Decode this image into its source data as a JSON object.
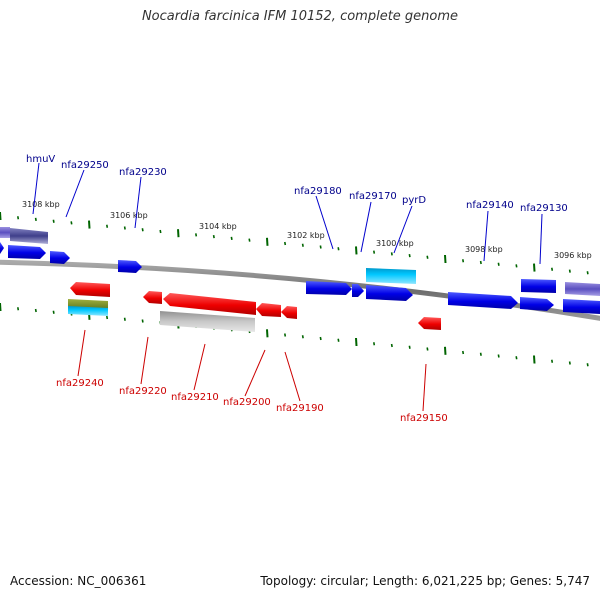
{
  "title": "Nocardia farcinica IFM 10152, complete genome",
  "footer": {
    "accession": "Accession: NC_006361",
    "summary": "Topology: circular; Length: 6,021,225 bp; Genes: 5,747"
  },
  "kbp_labels": [
    "3108 kbp",
    "3106 kbp",
    "3104 kbp",
    "3102 kbp",
    "3100 kbp",
    "3098 kbp",
    "3096 kbp"
  ],
  "genes_top": [
    "hmuV",
    "nfa29250",
    "nfa29230",
    "nfa29180",
    "nfa29170",
    "pyrD",
    "nfa29140",
    "nfa29130"
  ],
  "genes_bottom": [
    "nfa29240",
    "nfa29220",
    "nfa29210",
    "nfa29200",
    "nfa29190",
    "nfa29150"
  ],
  "colors": {
    "forward": "#0000e6",
    "reverse": "#e60000",
    "forward_label": "#00008b",
    "reverse_label": "#cc0000",
    "tick": "#006400",
    "backbone": "#808080"
  }
}
